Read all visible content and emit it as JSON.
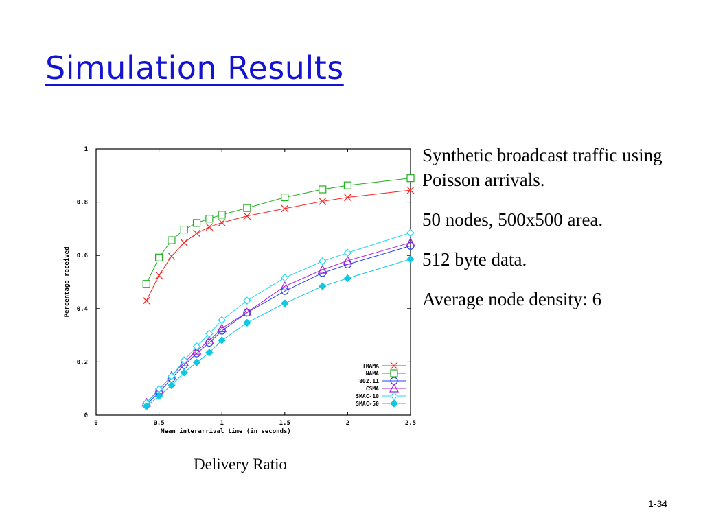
{
  "slide": {
    "title": "Simulation Results",
    "bullets": [
      "Synthetic broadcast traffic using Poisson arrivals.",
      "50 nodes, 500x500 area.",
      "512 byte data.",
      "Average node density: 6"
    ],
    "caption": "Delivery Ratio",
    "page_number": "1-34"
  },
  "colors": {
    "title": "#1414d0"
  },
  "chart_data": {
    "type": "line",
    "xlabel": "Mean interarrival time (in seconds)",
    "ylabel": "Percentage received",
    "xlim": [
      0,
      2.5
    ],
    "ylim": [
      0,
      1
    ],
    "xticks": [
      "0",
      "0.5",
      "1",
      "1.5",
      "2",
      "2.5"
    ],
    "yticks": [
      "0",
      "0.2",
      "0.4",
      "0.6",
      "0.8",
      "1"
    ],
    "grid": false,
    "legend_position": "bottom-right",
    "series": [
      {
        "name": "TRAMA",
        "color": "#ff2020",
        "marker": "x",
        "x": [
          0.4,
          0.5,
          0.6,
          0.7,
          0.8,
          0.9,
          1.0,
          1.2,
          1.5,
          1.8,
          2.0,
          2.5
        ],
        "y": [
          0.43,
          0.525,
          0.597,
          0.648,
          0.683,
          0.707,
          0.723,
          0.748,
          0.776,
          0.803,
          0.818,
          0.845
        ]
      },
      {
        "name": "NAMA",
        "color": "#20b020",
        "marker": "square",
        "x": [
          0.4,
          0.5,
          0.6,
          0.7,
          0.8,
          0.9,
          1.0,
          1.2,
          1.5,
          1.8,
          2.0,
          2.5
        ],
        "y": [
          0.493,
          0.592,
          0.657,
          0.697,
          0.722,
          0.738,
          0.753,
          0.778,
          0.818,
          0.848,
          0.863,
          0.89
        ]
      },
      {
        "name": "802.11",
        "color": "#2040ff",
        "marker": "circle",
        "x": [
          0.4,
          0.5,
          0.6,
          0.7,
          0.8,
          0.9,
          1.0,
          1.2,
          1.5,
          1.8,
          2.0,
          2.5
        ],
        "y": [
          0.04,
          0.085,
          0.138,
          0.188,
          0.232,
          0.272,
          0.317,
          0.385,
          0.466,
          0.534,
          0.566,
          0.636
        ]
      },
      {
        "name": "CSMA",
        "color": "#b020d0",
        "marker": "triangle",
        "x": [
          0.4,
          0.5,
          0.6,
          0.7,
          0.8,
          0.9,
          1.0,
          1.2,
          1.5,
          1.8,
          2.0,
          2.5
        ],
        "y": [
          0.047,
          0.095,
          0.148,
          0.198,
          0.242,
          0.28,
          0.326,
          0.386,
          0.484,
          0.546,
          0.58,
          0.648
        ]
      },
      {
        "name": "SMAC-10",
        "color": "#20d8f0",
        "marker": "diamond-open",
        "x": [
          0.4,
          0.5,
          0.6,
          0.7,
          0.8,
          0.9,
          1.0,
          1.2,
          1.5,
          1.8,
          2.0,
          2.5
        ],
        "y": [
          0.046,
          0.098,
          0.146,
          0.206,
          0.258,
          0.306,
          0.357,
          0.43,
          0.516,
          0.578,
          0.61,
          0.685
        ]
      },
      {
        "name": "SMAC-50",
        "color": "#10c8e0",
        "marker": "diamond-filled",
        "x": [
          0.4,
          0.5,
          0.6,
          0.7,
          0.8,
          0.9,
          1.0,
          1.2,
          1.5,
          1.8,
          2.0,
          2.5
        ],
        "y": [
          0.033,
          0.072,
          0.112,
          0.16,
          0.198,
          0.235,
          0.281,
          0.347,
          0.42,
          0.484,
          0.514,
          0.586
        ]
      }
    ]
  }
}
